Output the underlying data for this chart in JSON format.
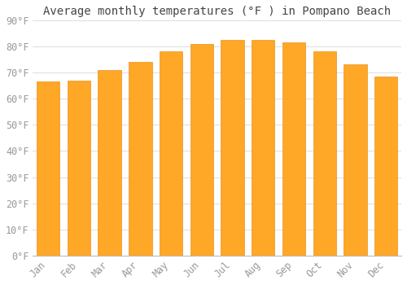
{
  "months": [
    "Jan",
    "Feb",
    "Mar",
    "Apr",
    "May",
    "Jun",
    "Jul",
    "Aug",
    "Sep",
    "Oct",
    "Nov",
    "Dec"
  ],
  "values": [
    66.5,
    67.0,
    71.0,
    74.0,
    78.0,
    81.0,
    82.5,
    82.5,
    81.5,
    78.0,
    73.0,
    68.5
  ],
  "bar_color": "#FFA726",
  "bar_edge_color": "#E69520",
  "title": "Average monthly temperatures (°F ) in Pompano Beach",
  "ylim": [
    0,
    90
  ],
  "yticks": [
    0,
    10,
    20,
    30,
    40,
    50,
    60,
    70,
    80,
    90
  ],
  "ytick_labels": [
    "0°F",
    "10°F",
    "20°F",
    "30°F",
    "40°F",
    "50°F",
    "60°F",
    "70°F",
    "80°F",
    "90°F"
  ],
  "background_color": "#FFFFFF",
  "grid_color": "#DDDDDD",
  "title_fontsize": 10,
  "tick_fontsize": 8.5,
  "font_family": "monospace",
  "tick_color": "#999999",
  "bar_width": 0.75
}
